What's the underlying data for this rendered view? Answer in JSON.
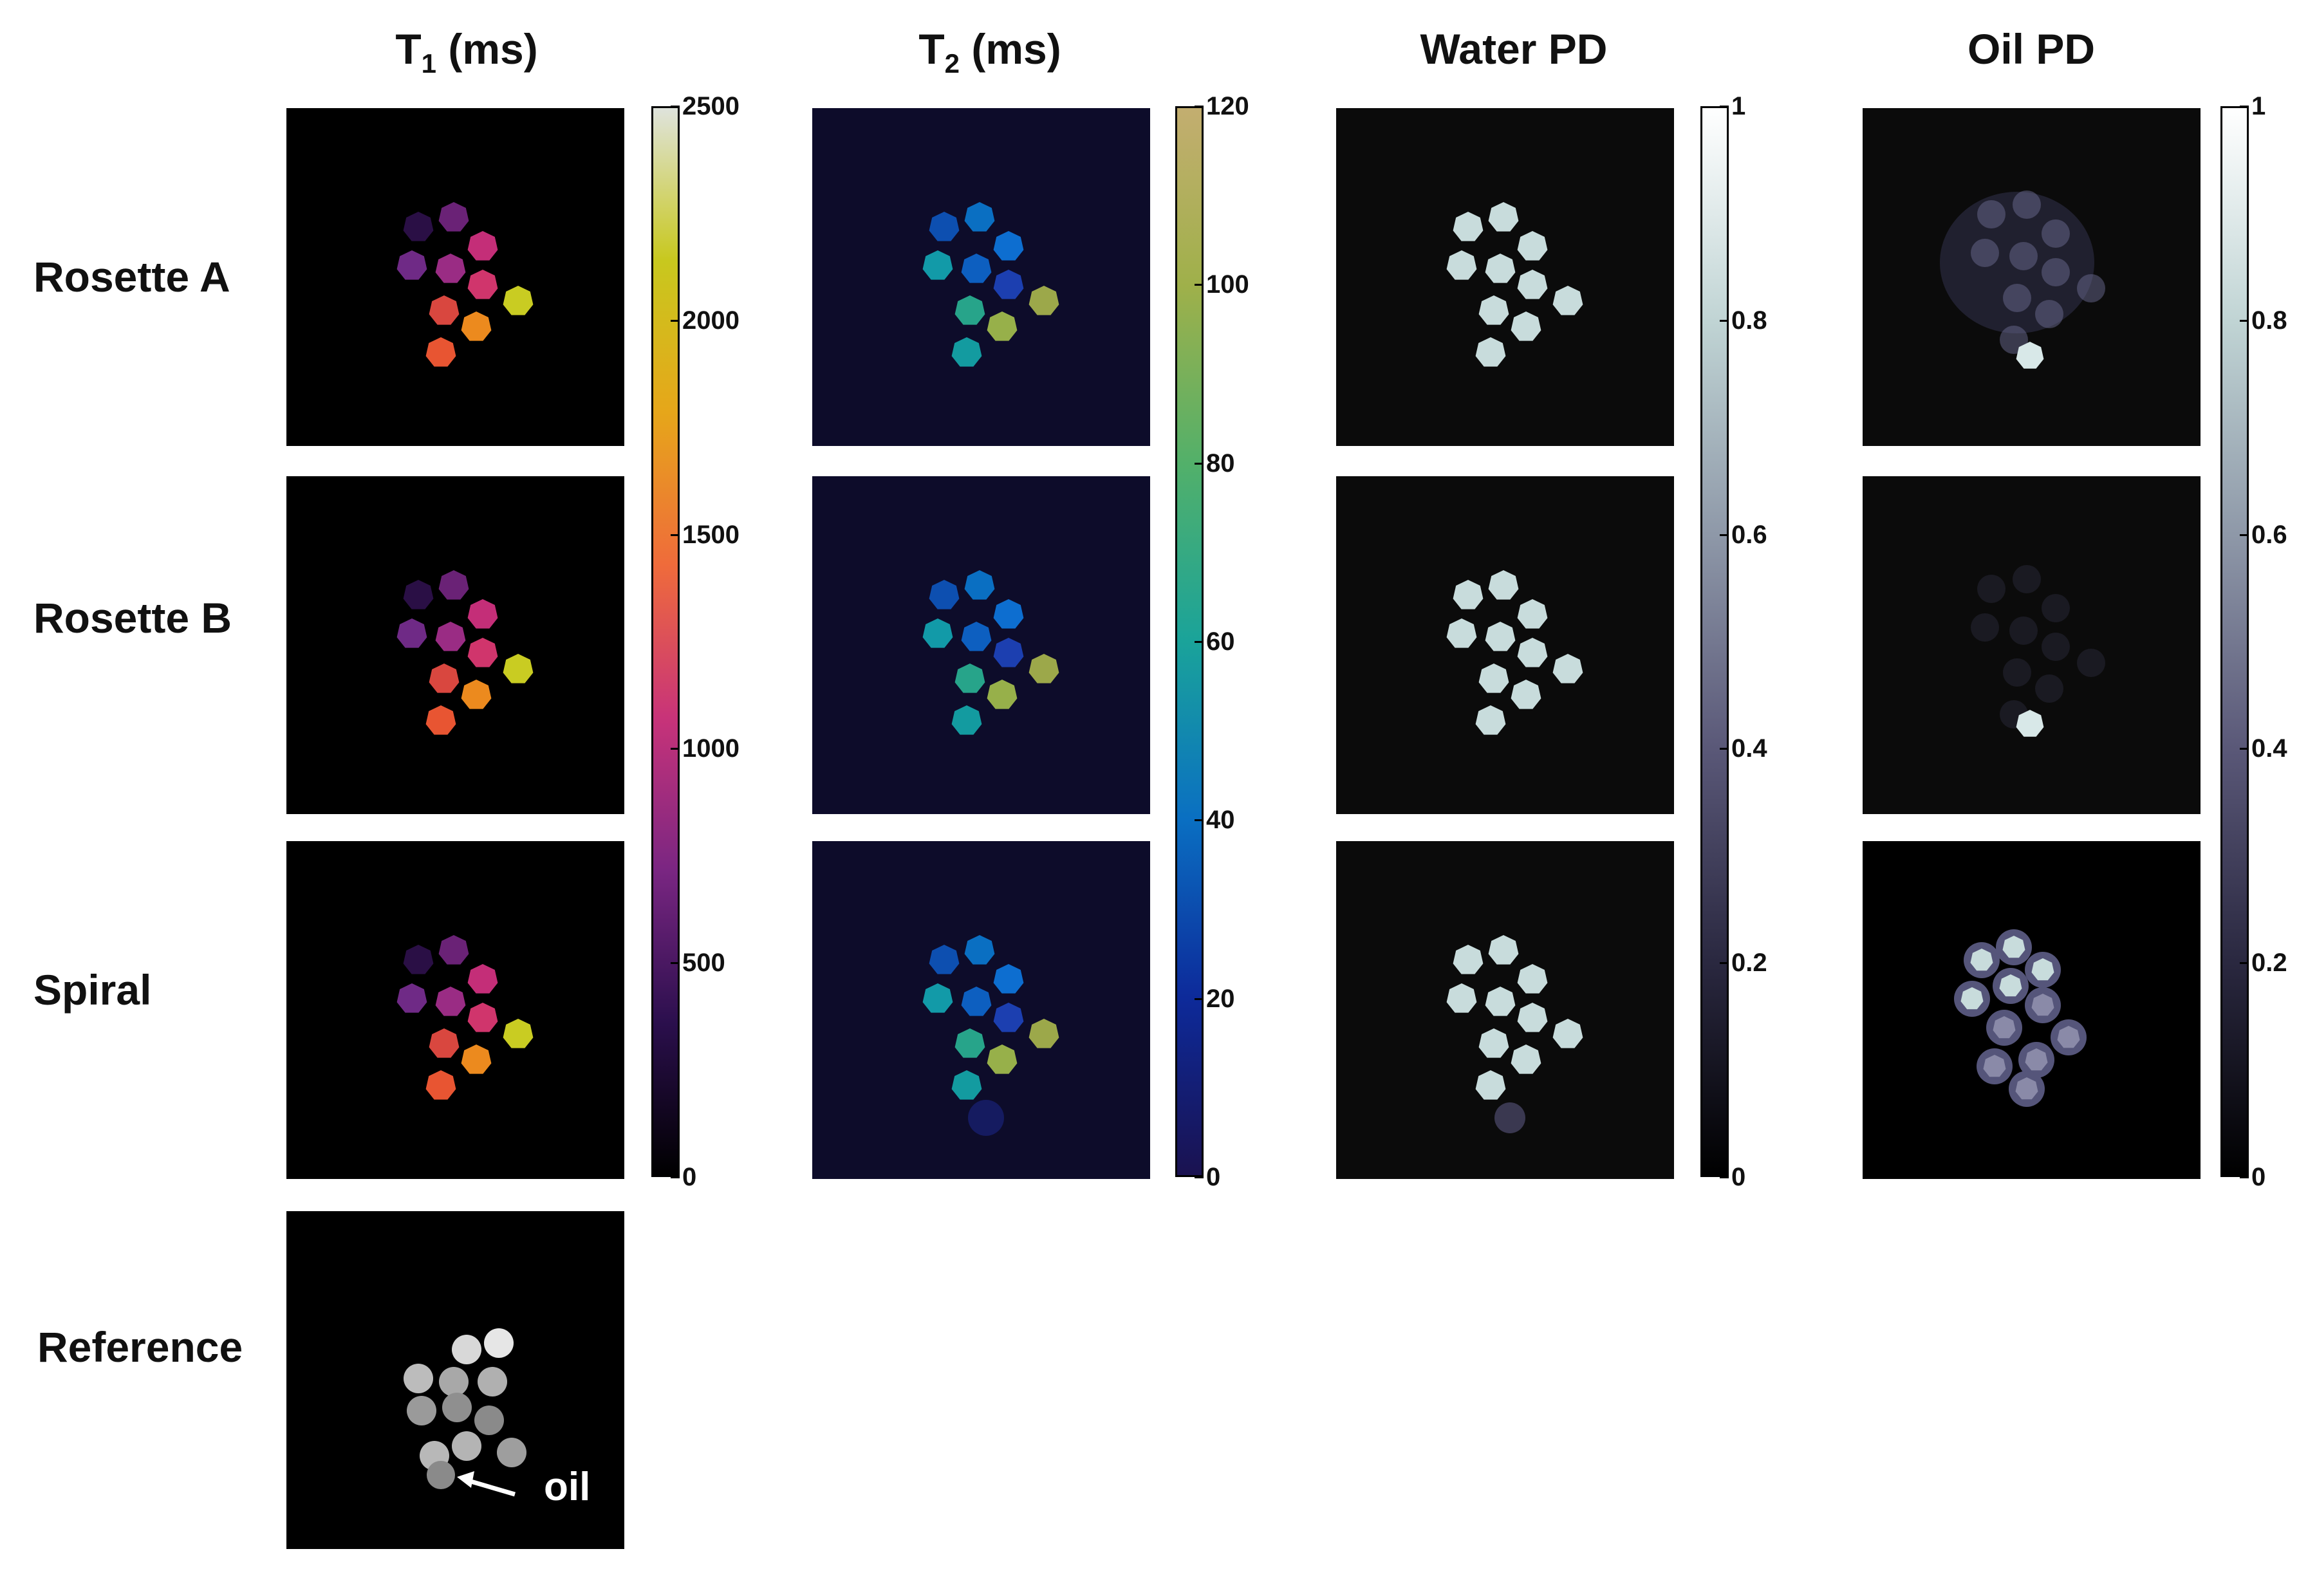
{
  "columns": [
    {
      "key": "t1",
      "title_main": "T",
      "title_sub": "1",
      "title_rest": " (ms)"
    },
    {
      "key": "t2",
      "title_main": "T",
      "title_sub": "2",
      "title_rest": " (ms)"
    },
    {
      "key": "water",
      "title_main": "Water PD",
      "title_sub": "",
      "title_rest": ""
    },
    {
      "key": "oil",
      "title_main": "Oil PD",
      "title_sub": "",
      "title_rest": ""
    }
  ],
  "rows": [
    {
      "key": "rosetteA",
      "label": "Rosette A"
    },
    {
      "key": "rosetteB",
      "label": "Rosette B"
    },
    {
      "key": "spiral",
      "label": "Spiral"
    },
    {
      "key": "reference",
      "label": "Reference"
    }
  ],
  "colorbars": {
    "t1": {
      "ticks": [
        "2500",
        "2000",
        "1500",
        "1000",
        "500",
        "0"
      ],
      "max": 2500,
      "colors": [
        "#000000",
        "#2b0f4d",
        "#7a2682",
        "#c83379",
        "#ef6b3b",
        "#e6a61a",
        "#c8c81e",
        "#dfe3dc"
      ]
    },
    "t2": {
      "ticks": [
        "120",
        "100",
        "80",
        "60",
        "40",
        "20",
        "0"
      ],
      "max": 120,
      "colors": [
        "#1a1250",
        "#0d2a9a",
        "#0a6fc2",
        "#1aa39a",
        "#52b06a",
        "#9fb04a",
        "#c3ae70"
      ]
    },
    "water": {
      "ticks": [
        "1",
        "0.8",
        "0.6",
        "0.4",
        "0.2",
        "0"
      ],
      "max": 1,
      "colors": [
        "#000000",
        "#2a2840",
        "#5a5878",
        "#8e98a8",
        "#c0d4d4",
        "#ffffff"
      ]
    },
    "oil": {
      "ticks": [
        "1",
        "0.8",
        "0.6",
        "0.4",
        "0.2",
        "0"
      ],
      "max": 1,
      "colors": [
        "#000000",
        "#2a2840",
        "#5a5878",
        "#8e98a8",
        "#c0d4d4",
        "#ffffff"
      ]
    }
  },
  "annotation": {
    "oil_label": "oil"
  }
}
